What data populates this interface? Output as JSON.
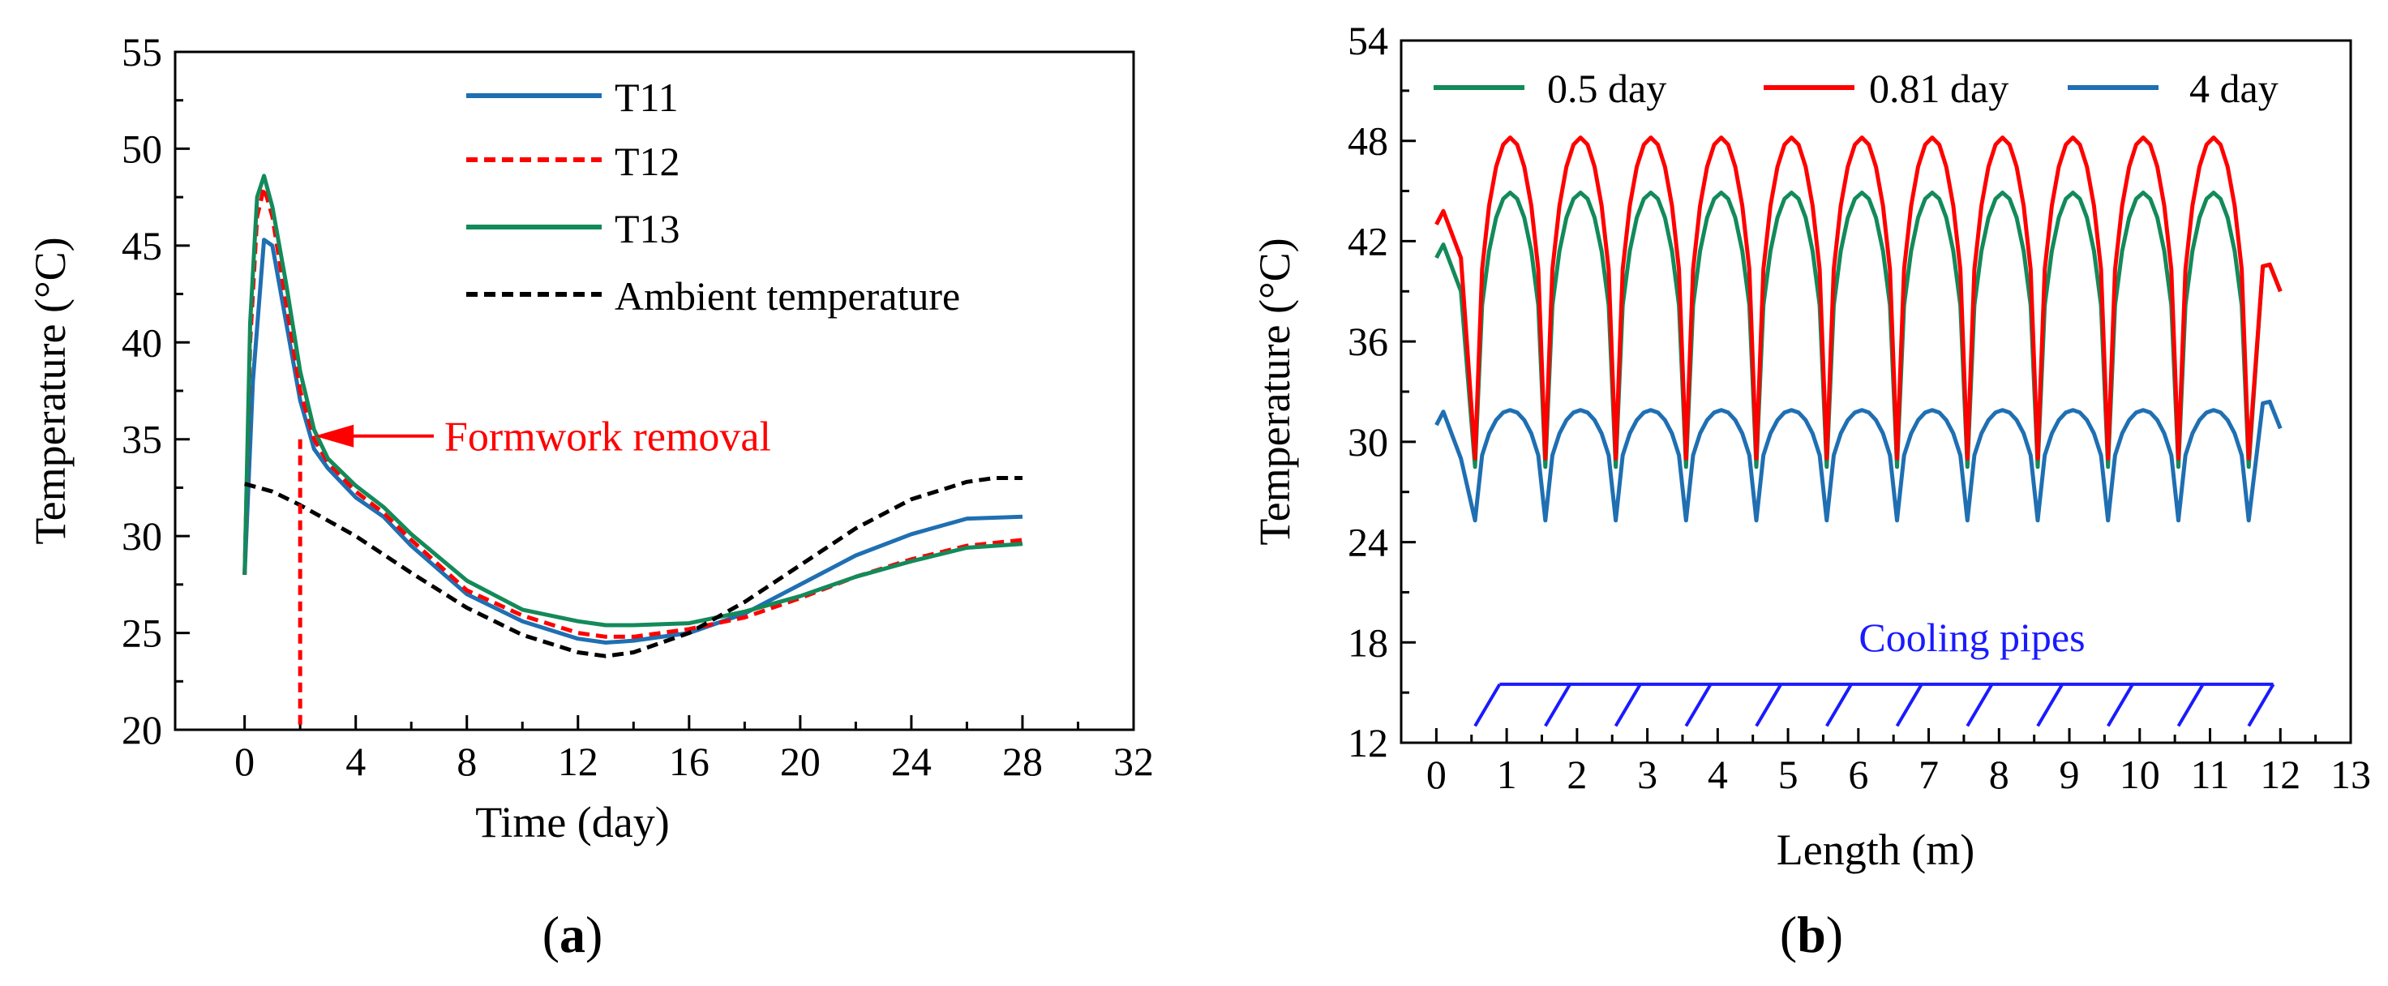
{
  "colors": {
    "T11": "#1f6fb2",
    "T12": "#ff0000",
    "T13": "#138a5a",
    "ambient": "#000000",
    "annotation": "#ff0000",
    "pipes": "#1a1aff",
    "d05": "#138a5a",
    "d081": "#ff0000",
    "d4": "#1f6fb2"
  },
  "chart_data": [
    {
      "type": "line",
      "panel_label": "a",
      "xlabel": "Time (day)",
      "ylabel": "Temperature (°C)",
      "xlim": [
        -2.5,
        32
      ],
      "ylim": [
        20,
        55
      ],
      "xticks": [
        0,
        4,
        8,
        12,
        16,
        20,
        24,
        28,
        32
      ],
      "yticks": [
        20,
        25,
        30,
        35,
        40,
        45,
        50,
        55
      ],
      "xticklabels": [
        "0",
        "4",
        "8",
        "12",
        "16",
        "20",
        "24",
        "28",
        "32"
      ],
      "yticklabels": [
        "20",
        "25",
        "30",
        "35",
        "40",
        "45",
        "50",
        "55"
      ],
      "series": [
        {
          "name": "T11",
          "style": "solid",
          "color_key": "T11",
          "x": [
            0,
            0.3,
            0.7,
            1.0,
            1.5,
            2,
            2.5,
            3,
            4,
            5,
            6,
            8,
            10,
            12,
            13,
            14,
            16,
            18,
            20,
            22,
            24,
            26,
            28
          ],
          "y": [
            28,
            38,
            45.3,
            45,
            41,
            37,
            34.5,
            33.5,
            32,
            31,
            29.5,
            27,
            25.6,
            24.7,
            24.5,
            24.6,
            25,
            26,
            27.5,
            29,
            30.1,
            30.9,
            31
          ]
        },
        {
          "name": "T12",
          "style": "dashed",
          "color_key": "T12",
          "x": [
            0,
            0.2,
            0.45,
            0.7,
            1.0,
            1.5,
            2,
            2.5,
            3,
            4,
            5,
            6,
            8,
            10,
            12,
            13,
            14,
            16,
            18,
            20,
            22,
            24,
            26,
            28
          ],
          "y": [
            28,
            40,
            46.5,
            48,
            46.5,
            42,
            37.5,
            35,
            33.8,
            32.3,
            31.2,
            29.8,
            27.2,
            25.9,
            25,
            24.8,
            24.8,
            25.2,
            25.8,
            26.8,
            27.9,
            28.8,
            29.5,
            29.8
          ]
        },
        {
          "name": "T13",
          "style": "solid",
          "color_key": "T13",
          "x": [
            0,
            0.2,
            0.45,
            0.7,
            1.0,
            1.5,
            2,
            2.5,
            3,
            4,
            5,
            6,
            8,
            10,
            12,
            13,
            14,
            16,
            18,
            20,
            22,
            24,
            26,
            28
          ],
          "y": [
            28,
            41,
            47.5,
            48.6,
            47,
            43,
            38.5,
            35.5,
            34,
            32.6,
            31.5,
            30.1,
            27.7,
            26.2,
            25.6,
            25.4,
            25.4,
            25.5,
            26.1,
            26.9,
            27.9,
            28.7,
            29.4,
            29.6
          ]
        },
        {
          "name": "Ambient temperature",
          "style": "dashed",
          "color_key": "ambient",
          "x": [
            0,
            1,
            2,
            3,
            4,
            6,
            8,
            10,
            12,
            13,
            14,
            16,
            18,
            20,
            22,
            24,
            26,
            27,
            28
          ],
          "y": [
            32.7,
            32.3,
            31.6,
            30.8,
            30,
            28.1,
            26.3,
            24.9,
            24,
            23.8,
            24,
            25,
            26.6,
            28.5,
            30.4,
            31.9,
            32.8,
            33,
            33
          ]
        }
      ],
      "annotation": {
        "text": "Formwork removal",
        "x": 2,
        "y": 35
      },
      "legend_position": "top-right"
    },
    {
      "type": "line",
      "panel_label": "b",
      "xlabel": "Length (m)",
      "ylabel": "Temperature (°C)",
      "xlim": [
        -0.5,
        13
      ],
      "ylim": [
        12,
        54
      ],
      "xticks": [
        0,
        1,
        2,
        3,
        4,
        5,
        6,
        7,
        8,
        9,
        10,
        11,
        12,
        13
      ],
      "yticks": [
        12,
        18,
        24,
        30,
        36,
        42,
        48,
        54
      ],
      "xticklabels": [
        "0",
        "1",
        "2",
        "3",
        "4",
        "5",
        "6",
        "7",
        "8",
        "9",
        "10",
        "11",
        "12",
        "13"
      ],
      "yticklabels": [
        "12",
        "18",
        "24",
        "30",
        "36",
        "42",
        "48",
        "54"
      ],
      "pipe_positions": [
        0.55,
        1.55,
        2.55,
        3.55,
        4.55,
        5.55,
        6.55,
        7.55,
        8.55,
        9.55,
        10.55,
        11.55
      ],
      "series": [
        {
          "name": "0.5 day",
          "color_key": "d05",
          "edge_start": 41,
          "edge_end": 39,
          "peak": 44.9,
          "dip": 28.5
        },
        {
          "name": "0.81 day",
          "color_key": "d081",
          "edge_start": 43,
          "edge_end": 39,
          "peak": 48.2,
          "dip": 29
        },
        {
          "name": "4 day",
          "color_key": "d4",
          "edge_start": 31,
          "edge_end": 30.8,
          "peak": 31.9,
          "dip": 25.3
        }
      ],
      "annotation": {
        "text": "Cooling pipes"
      },
      "legend_position": "top"
    }
  ],
  "captions": {
    "a": "a",
    "b": "b"
  }
}
